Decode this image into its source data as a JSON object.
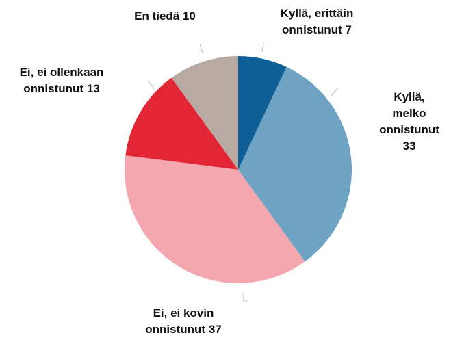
{
  "chart_data": {
    "type": "pie",
    "categories": [
      "Kyllä, erittäin onnistunut",
      "Kyllä, melko onnistunut",
      "Ei, ei kovin onnistunut",
      "Ei, ei ollenkaan onnistunut",
      "En tiedä"
    ],
    "values": [
      7,
      33,
      37,
      13,
      10
    ],
    "colors": [
      "#0e5f96",
      "#6ea3c4",
      "#f4a7ae",
      "#e32636",
      "#b8aaa3"
    ]
  }
}
